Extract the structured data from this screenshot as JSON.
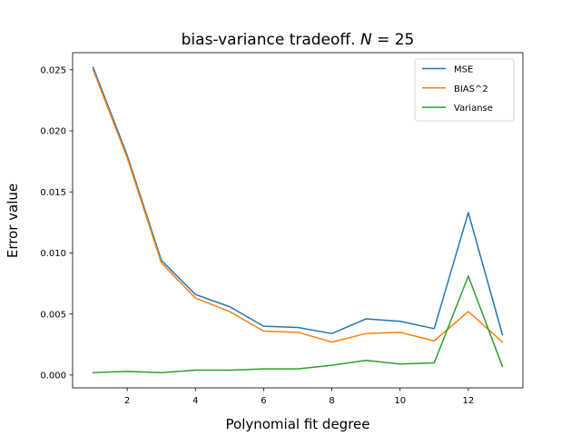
{
  "chart_data": {
    "type": "line",
    "title": "bias-variance tradeoff. N = 25",
    "title_prefix": "bias-variance tradeoff. ",
    "title_var": "N",
    "title_rest": " = 25",
    "xlabel": "Polynomial fit degree",
    "ylabel": "Error value",
    "xlim": [
      0.4,
      13.6
    ],
    "ylim": [
      -0.00105,
      0.0264
    ],
    "x_ticks": [
      2,
      4,
      6,
      8,
      10,
      12
    ],
    "y_ticks": [
      0.0,
      0.005,
      0.01,
      0.015,
      0.02,
      0.025
    ],
    "y_tick_labels": [
      "0.000",
      "0.005",
      "0.010",
      "0.015",
      "0.020",
      "0.025"
    ],
    "grid": false,
    "legend_position": "top-right",
    "x": [
      1,
      2,
      3,
      4,
      5,
      6,
      7,
      8,
      9,
      10,
      11,
      12,
      13
    ],
    "series": [
      {
        "name": "MSE",
        "color": "#1f77b4",
        "values": [
          0.0252,
          0.018,
          0.0094,
          0.0066,
          0.0056,
          0.004,
          0.0039,
          0.0034,
          0.0046,
          0.0044,
          0.0038,
          0.0133,
          0.0033
        ]
      },
      {
        "name": "BIAS^2",
        "color": "#ff7f0e",
        "values": [
          0.025,
          0.0178,
          0.0092,
          0.0063,
          0.0052,
          0.0036,
          0.0035,
          0.0027,
          0.0034,
          0.0035,
          0.0028,
          0.0052,
          0.0027
        ]
      },
      {
        "name": "Varianse",
        "color": "#2ca02c",
        "values": [
          0.0002,
          0.0003,
          0.0002,
          0.0004,
          0.0004,
          0.0005,
          0.0005,
          0.0008,
          0.0012,
          0.0009,
          0.001,
          0.0081,
          0.0007
        ]
      }
    ]
  }
}
